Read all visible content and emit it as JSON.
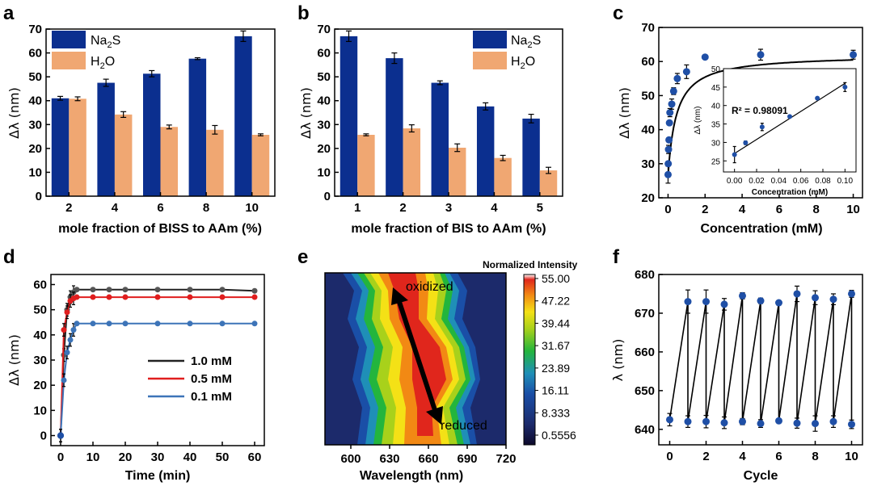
{
  "colors": {
    "blue": "#0b2f8f",
    "orange": "#f0a772",
    "black": "#222222",
    "red": "#e01e1e",
    "lightblue": "#3d74b8",
    "marker": "#1f4fa6"
  },
  "chart_data": [
    {
      "panel": "a",
      "type": "bar",
      "xlabel": "mole fraction of BISS to AAm (%)",
      "ylabel": "Δλ (nm)",
      "categories": [
        "2",
        "4",
        "6",
        "8",
        "10"
      ],
      "ylim": [
        0,
        70
      ],
      "yticks": [
        "0",
        "10",
        "20",
        "30",
        "40",
        "50",
        "60",
        "70"
      ],
      "series": [
        {
          "name": "Na2S",
          "legend_main": "Na",
          "legend_sub": "2",
          "legend_rest": "S",
          "color": "#0b2f8f",
          "values": [
            41,
            47.5,
            51.3,
            57.6,
            67
          ],
          "errors": [
            0.8,
            1.5,
            1.3,
            0.4,
            2.2
          ]
        },
        {
          "name": "H2O",
          "legend_main": "H",
          "legend_sub": "2",
          "legend_rest": "O",
          "color": "#f0a772",
          "values": [
            40.8,
            34.2,
            29,
            27.8,
            25.7
          ],
          "errors": [
            0.8,
            1.2,
            0.8,
            1.8,
            0.4
          ]
        }
      ]
    },
    {
      "panel": "b",
      "type": "bar",
      "xlabel": "mole fraction of BIS to AAm (%)",
      "ylabel": "Δλ (nm)",
      "categories": [
        "1",
        "2",
        "3",
        "4",
        "5"
      ],
      "ylim": [
        0,
        70
      ],
      "yticks": [
        "0",
        "10",
        "20",
        "30",
        "40",
        "50",
        "60",
        "70"
      ],
      "series": [
        {
          "name": "Na2S",
          "legend_main": "Na",
          "legend_sub": "2",
          "legend_rest": "S",
          "color": "#0b2f8f",
          "values": [
            67,
            57.8,
            47.5,
            37.6,
            32.5
          ],
          "errors": [
            2.2,
            2.2,
            0.8,
            1.5,
            1.8
          ]
        },
        {
          "name": "H2O",
          "legend_main": "H",
          "legend_sub": "2",
          "legend_rest": "O",
          "color": "#f0a772",
          "values": [
            25.7,
            28.4,
            20.3,
            16,
            10.8
          ],
          "errors": [
            0.4,
            1.5,
            1.6,
            1.1,
            1.3
          ]
        }
      ]
    },
    {
      "panel": "c",
      "type": "scatter",
      "xlabel": "Concentration (mM)",
      "ylabel": "Δλ (nm)",
      "xlim": [
        -0.5,
        10.5
      ],
      "ylim": [
        20,
        70
      ],
      "xticks": [
        "0",
        "2",
        "4",
        "6",
        "8",
        "10"
      ],
      "yticks": [
        "20",
        "30",
        "40",
        "50",
        "60",
        "70"
      ],
      "x": [
        0,
        0.01,
        0.025,
        0.05,
        0.075,
        0.1,
        0.2,
        0.3,
        0.5,
        1,
        2,
        5,
        10
      ],
      "y": [
        26.8,
        30,
        34.2,
        37,
        42,
        45,
        47.5,
        51.3,
        55,
        57,
        61.3,
        62,
        62
      ],
      "errors": [
        2.5,
        0.5,
        1.2,
        0.4,
        0.3,
        1.2,
        1.5,
        1,
        1.5,
        2,
        0.5,
        1.6,
        1.3
      ],
      "fit": {
        "type": "langmuir",
        "ymin": 26.5,
        "ymax": 62,
        "k": 2.2
      },
      "inset": {
        "xlabel": "Concentration (mM)",
        "ylabel": "Δλ (nm)",
        "annotation": "R² = 0.98091",
        "xlim": [
          -0.01,
          0.11
        ],
        "ylim": [
          22,
          50
        ],
        "xticks": [
          "0.00",
          "0.02",
          "0.04",
          "0.06",
          "0.08",
          "0.10"
        ],
        "yticks": [
          "25",
          "30",
          "35",
          "40",
          "45",
          "50"
        ],
        "x": [
          0,
          0.01,
          0.025,
          0.05,
          0.075,
          0.1
        ],
        "y": [
          26.7,
          29.9,
          34.2,
          37,
          42,
          45
        ],
        "errors": [
          2.2,
          0.5,
          1,
          0.3,
          0.3,
          1.2
        ],
        "linfit": {
          "slope": 190,
          "intercept": 27
        }
      }
    },
    {
      "panel": "d",
      "type": "line",
      "xlabel": "Time (min)",
      "ylabel": "Δλ (nm)",
      "xlim": [
        -3,
        63
      ],
      "ylim": [
        -4,
        64
      ],
      "xticks": [
        "0",
        "10",
        "20",
        "30",
        "40",
        "50",
        "60"
      ],
      "yticks": [
        "0",
        "10",
        "20",
        "30",
        "40",
        "50",
        "60"
      ],
      "series": [
        {
          "name": "1.0 mM",
          "color": "#222222",
          "x": [
            0,
            1,
            2,
            3,
            4,
            5,
            10,
            15,
            20,
            30,
            40,
            50,
            60
          ],
          "y": [
            0,
            32,
            50,
            55,
            57,
            58,
            58,
            58,
            58,
            58,
            58,
            58,
            57.5
          ]
        },
        {
          "name": "0.5 mM",
          "color": "#e01e1e",
          "x": [
            0,
            1,
            2,
            3,
            4,
            5,
            10,
            15,
            20,
            30,
            40,
            50,
            60
          ],
          "y": [
            0,
            42,
            49,
            53.5,
            54.5,
            55,
            55,
            55,
            55,
            55,
            55,
            55,
            55
          ]
        },
        {
          "name": "0.1 mM",
          "color": "#3d74b8",
          "x": [
            0,
            1,
            2,
            3,
            4,
            5,
            10,
            15,
            20,
            30,
            40,
            50,
            60
          ],
          "y": [
            0,
            22,
            33,
            38,
            42,
            44.5,
            44.5,
            44.5,
            44.5,
            44.5,
            44.5,
            44.5,
            44.5
          ]
        }
      ]
    },
    {
      "panel": "e",
      "type": "heatmap",
      "xlabel": "Wavelength (nm)",
      "xlim": [
        580,
        720
      ],
      "xticks": [
        "600",
        "630",
        "660",
        "690",
        "720"
      ],
      "colorbar_title": "Normalized Intensity",
      "colorbar_ticks": [
        "55.00",
        "47.22",
        "39.44",
        "31.67",
        "23.89",
        "16.11",
        "8.333",
        "0.5556"
      ],
      "annotations": {
        "top": "oxidized",
        "bottom": "reduced"
      },
      "peak_wavelength_top": 640,
      "peak_wavelength_bottom": 675
    },
    {
      "panel": "f",
      "type": "line",
      "xlabel": "Cycle",
      "ylabel": "λ (nm)",
      "xlim": [
        -0.6,
        10.6
      ],
      "ylim": [
        636,
        680
      ],
      "xticks": [
        "0",
        "2",
        "4",
        "6",
        "8",
        "10"
      ],
      "yticks": [
        "640",
        "650",
        "660",
        "670",
        "680"
      ],
      "x": [
        0,
        1,
        1,
        2,
        2,
        3,
        3,
        4,
        4,
        5,
        5,
        6,
        6,
        7,
        7,
        8,
        8,
        9,
        9,
        10,
        10
      ],
      "y": [
        642.5,
        673,
        642,
        673,
        642,
        672.3,
        641.7,
        674.5,
        642,
        673.2,
        641.5,
        672.7,
        642.2,
        675,
        641.6,
        674,
        641.5,
        673.6,
        642,
        675,
        641.3
      ],
      "errors": [
        1.6,
        3,
        1.5,
        3,
        1.6,
        1.5,
        1.5,
        0.8,
        0.8,
        0.7,
        1,
        0.5,
        0.5,
        2,
        1.3,
        1.8,
        2,
        1.4,
        1.5,
        0.9,
        1.1
      ]
    }
  ],
  "panel_labels": [
    "a",
    "b",
    "c",
    "d",
    "e",
    "f"
  ]
}
